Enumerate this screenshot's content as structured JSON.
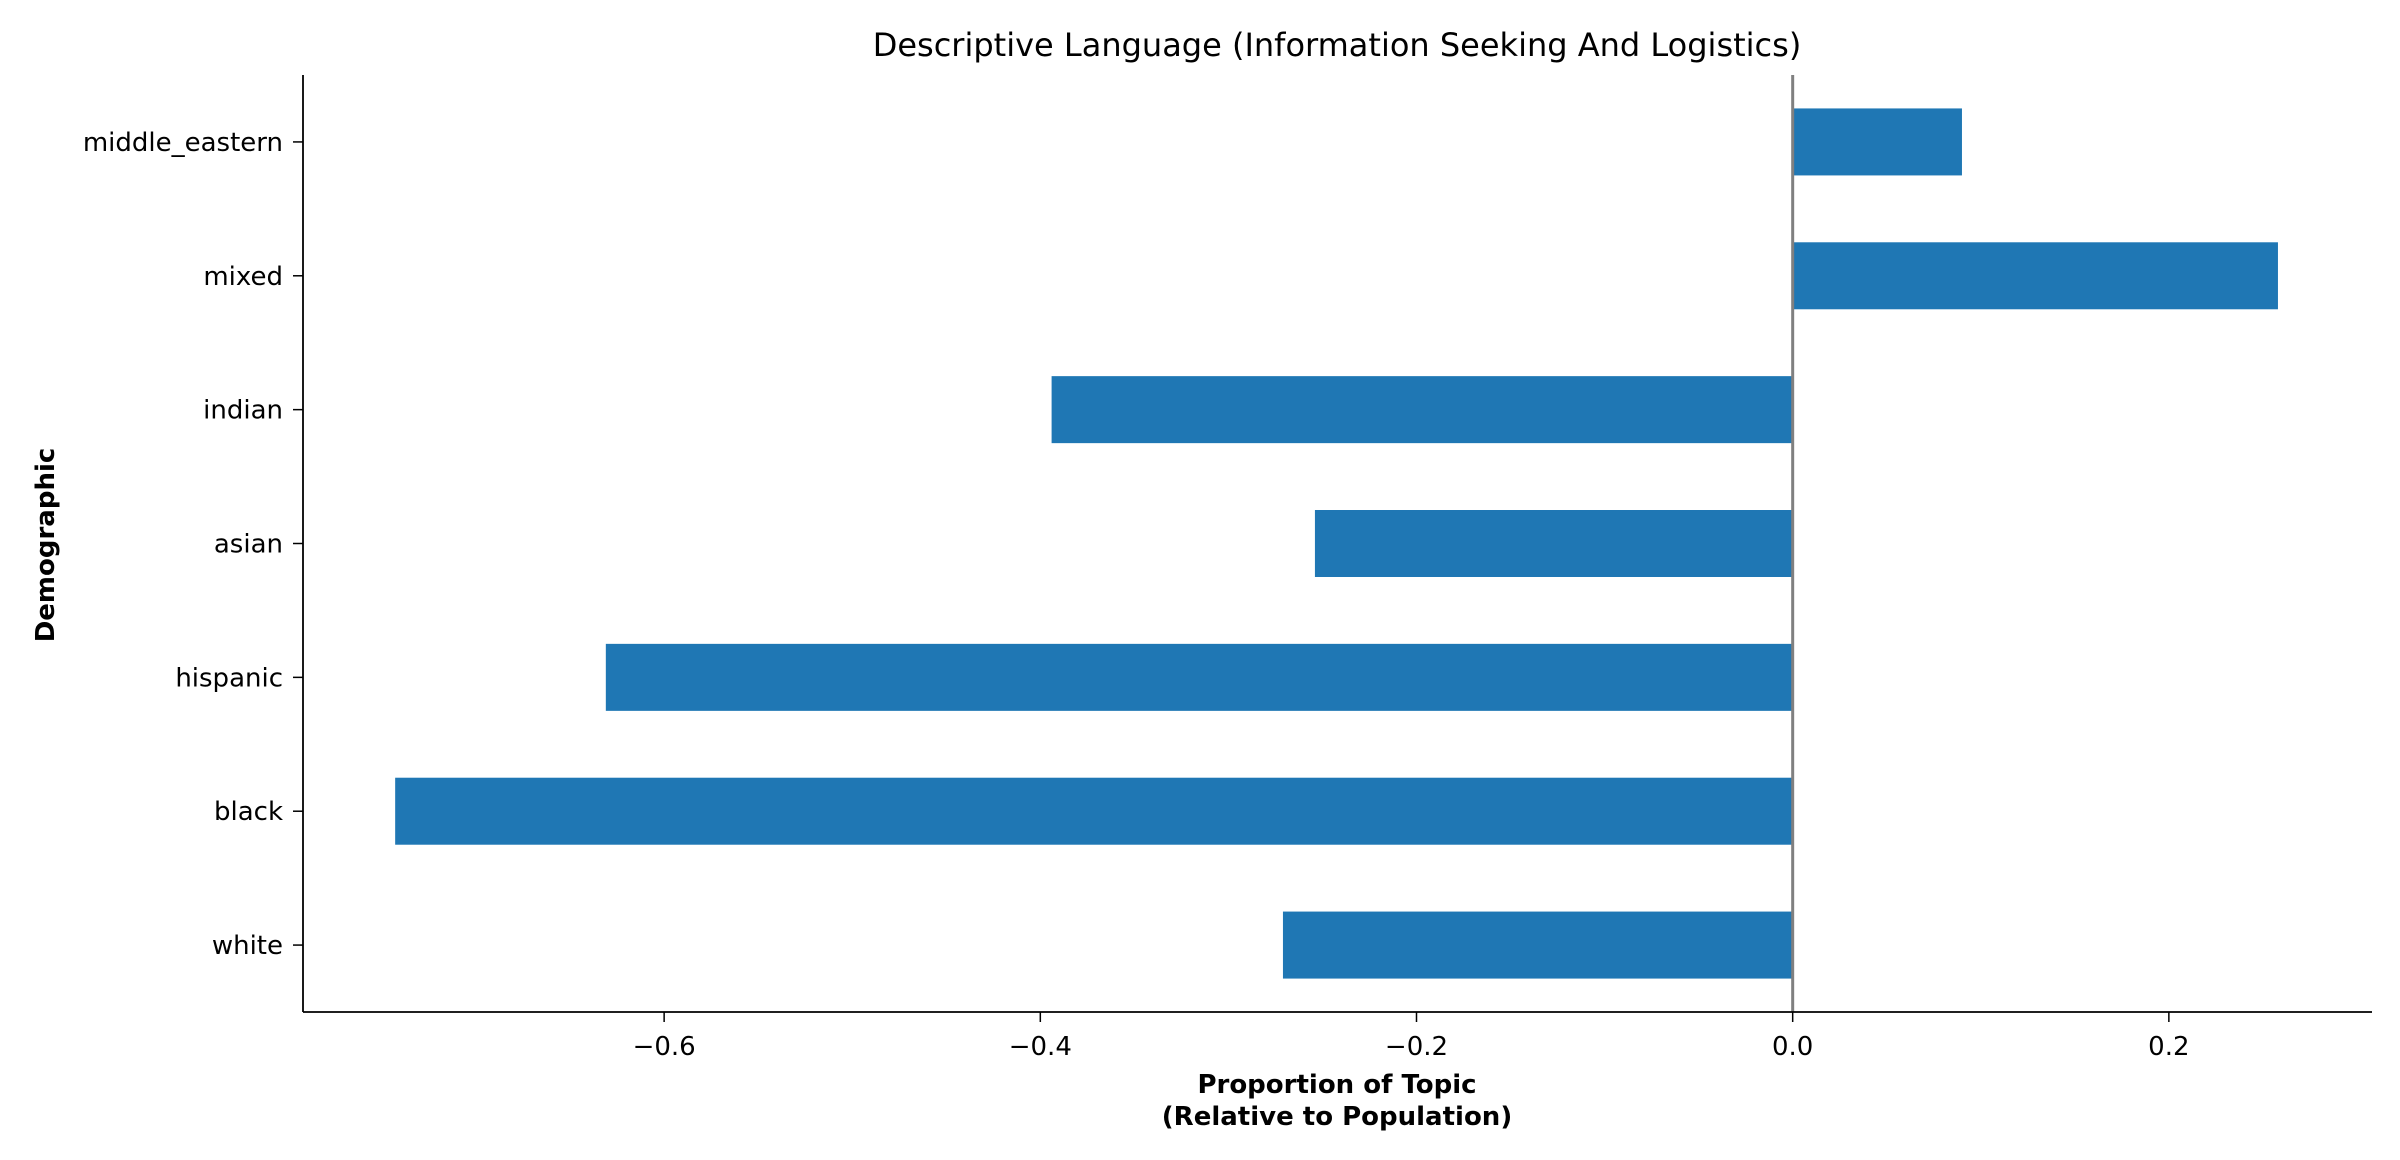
{
  "chart_data": {
    "type": "bar",
    "orientation": "horizontal",
    "title": "Descriptive Language (Information Seeking And Logistics)",
    "xlabel_lines": [
      "Proportion of Topic",
      "(Relative to Population)"
    ],
    "ylabel": "Demographic",
    "categories": [
      "middle_eastern",
      "mixed",
      "indian",
      "asian",
      "hispanic",
      "black",
      "white"
    ],
    "values": [
      0.09,
      0.258,
      -0.394,
      -0.254,
      -0.631,
      -0.743,
      -0.271
    ],
    "xlim": [
      -0.792,
      0.308
    ],
    "xticks": [
      -0.6,
      -0.4,
      -0.2,
      0.0,
      0.2
    ],
    "xtick_labels": [
      "−0.6",
      "−0.4",
      "−0.2",
      "0.0",
      "0.2"
    ],
    "zero_line": true,
    "grid": false,
    "bar_color": "#1f77b4",
    "zero_line_color": "#808080"
  }
}
